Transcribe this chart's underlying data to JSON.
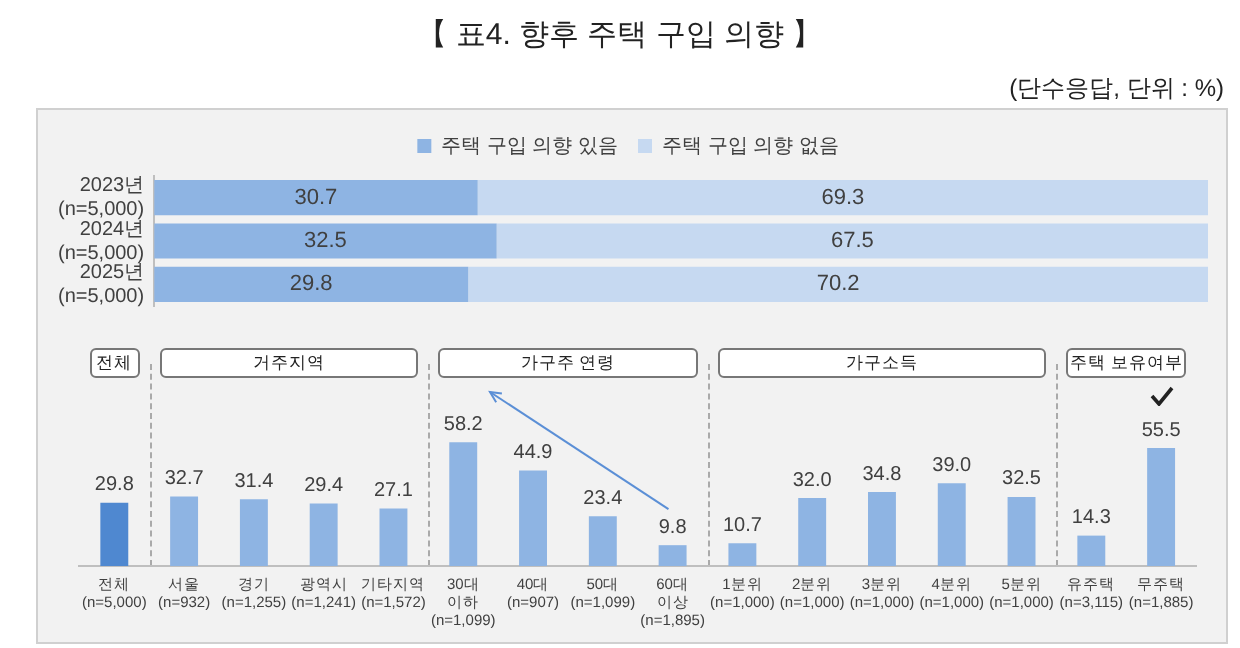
{
  "chart_data": [
    {
      "type": "bar",
      "title": "【 표4. 향후 주택 구입 의향 】",
      "subtitle": "(단수응답, 단위 : %)",
      "orientation": "horizontal",
      "stacked": true,
      "categories": [
        "2023년\n(n=5,000)",
        "2024년\n(n=5,000)",
        "2025년\n(n=5,000)"
      ],
      "series": [
        {
          "name": "주택 구입 의향 있음",
          "color": "#8eb4e3",
          "values": [
            30.7,
            32.5,
            29.8
          ]
        },
        {
          "name": "주택 구입 의향 없음",
          "color": "#c6d9f1",
          "values": [
            69.3,
            67.5,
            70.2
          ]
        }
      ],
      "data_labels": true,
      "legend": "top",
      "tick_labels": "y"
    },
    {
      "type": "bar",
      "categories": [
        "전체\n(n=5,000)",
        "서울\n(n=932)",
        "경기\n(n=1,255)",
        "광역시\n(n=1,241)",
        "기타지역\n(n=1,572)",
        "30대\n이하\n(n=1,099)",
        "40대\n(n=907)",
        "50대\n(n=1,099)",
        "60대\n이상\n(n=1,895)",
        "1분위\n(n=1,000)",
        "2분위\n(n=1,000)",
        "3분위\n(n=1,000)",
        "4분위\n(n=1,000)",
        "5분위\n(n=1,000)",
        "유주택\n(n=3,115)",
        "무주택\n(n=1,885)"
      ],
      "values": [
        29.8,
        32.7,
        31.4,
        29.4,
        27.1,
        58.2,
        44.9,
        23.4,
        9.8,
        10.7,
        32.0,
        34.8,
        39.0,
        32.5,
        14.3,
        55.5
      ],
      "value_labels": [
        "29.8",
        "32.7",
        "31.4",
        "29.4",
        "27.1",
        "58.2",
        "44.9",
        "23.4",
        "9.8",
        "10.7",
        "32.0",
        "34.8",
        "39.0",
        "32.5",
        "14.3",
        "55.5"
      ],
      "colors": [
        "#4f88d0",
        "#8eb4e3",
        "#8eb4e3",
        "#8eb4e3",
        "#8eb4e3",
        "#8eb4e3",
        "#8eb4e3",
        "#8eb4e3",
        "#8eb4e3",
        "#8eb4e3",
        "#8eb4e3",
        "#8eb4e3",
        "#8eb4e3",
        "#8eb4e3",
        "#8eb4e3",
        "#8eb4e3"
      ],
      "annotations": [
        "전체",
        "거주지역",
        "가구주 연령",
        "가구소득",
        "주택 보유여부"
      ],
      "tick_labels": "x"
    }
  ]
}
